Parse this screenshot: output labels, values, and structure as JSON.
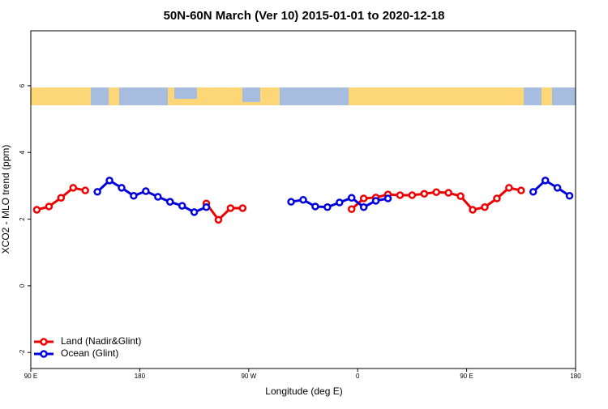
{
  "chart_data": {
    "type": "line",
    "title": "50N-60N March (Ver 10)   2015-01-01 to 2020-12-18",
    "x_label": "Longitude (deg E)",
    "y_label": "XCO2 - MLO trend (ppm)",
    "xlim": [
      90,
      540
    ],
    "xticks": [
      {
        "value": 90,
        "label": "90 E"
      },
      {
        "value": 180,
        "label": "180"
      },
      {
        "value": 270,
        "label": "90 W"
      },
      {
        "value": 360,
        "label": "0"
      },
      {
        "value": 450,
        "label": "90 E"
      },
      {
        "value": 540,
        "label": "180"
      }
    ],
    "ylim": [
      -2.48,
      7.65
    ],
    "yticks": [
      -2,
      0,
      2,
      4,
      6
    ],
    "legend": "bottom-left",
    "series": [
      {
        "name": "Land (Nadir&Glint)",
        "color": "#ee0000",
        "x": [
          95,
          105,
          115,
          125,
          135,
          null,
          205,
          null,
          235,
          245,
          255,
          265,
          null,
          355,
          365,
          375,
          385,
          395,
          405,
          415,
          425,
          435,
          445,
          455,
          465,
          475,
          485,
          495
        ],
        "values": [
          2.28,
          2.38,
          2.64,
          2.94,
          2.86,
          null,
          2.52,
          null,
          2.47,
          1.98,
          2.33,
          2.33,
          null,
          2.3,
          2.62,
          2.65,
          2.74,
          2.72,
          2.72,
          2.76,
          2.81,
          2.79,
          2.69,
          2.28,
          2.36,
          2.62,
          2.94,
          2.86
        ]
      },
      {
        "name": "Ocean (Glint)",
        "color": "#0000dd",
        "x": [
          145,
          155,
          165,
          175,
          185,
          195,
          205,
          215,
          225,
          235,
          null,
          305,
          315,
          325,
          335,
          345,
          355,
          365,
          375,
          385,
          null,
          505,
          515,
          525,
          535
        ],
        "values": [
          2.82,
          3.16,
          2.94,
          2.7,
          2.84,
          2.67,
          2.52,
          2.4,
          2.21,
          2.36,
          null,
          2.52,
          2.58,
          2.38,
          2.36,
          2.5,
          2.64,
          2.36,
          2.55,
          2.62,
          null,
          2.82,
          3.16,
          2.94,
          2.7
        ]
      }
    ]
  }
}
